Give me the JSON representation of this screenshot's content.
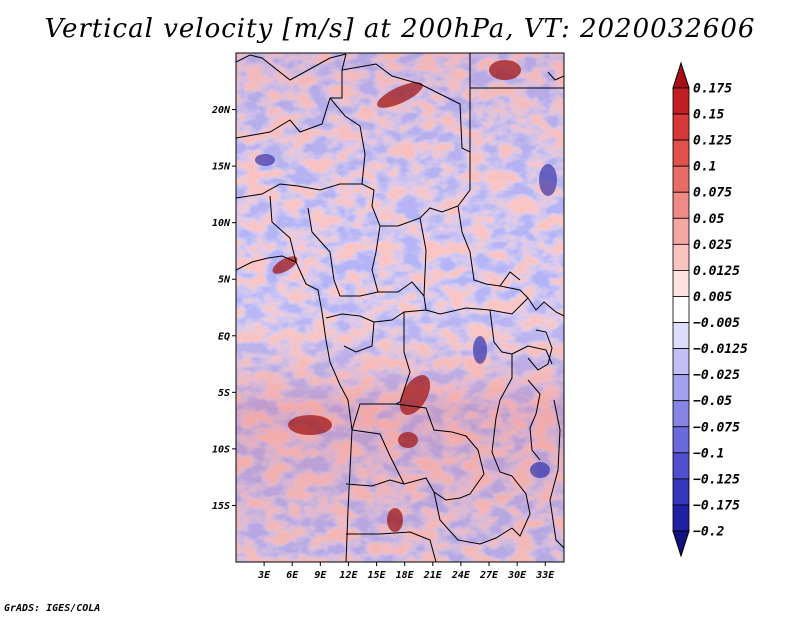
{
  "title": "Vertical velocity [m/s] at 200hPa, VT: 2020032606",
  "credit": "GrADS: IGES/COLA",
  "map": {
    "lon_range": [
      0,
      35
    ],
    "lat_range": [
      -20,
      25
    ],
    "xticks": [
      "3E",
      "6E",
      "9E",
      "12E",
      "15E",
      "18E",
      "21E",
      "24E",
      "27E",
      "30E",
      "33E"
    ],
    "xtick_values": [
      3,
      6,
      9,
      12,
      15,
      18,
      21,
      24,
      27,
      30,
      33
    ],
    "yticks": [
      "20N",
      "15N",
      "10N",
      "5N",
      "EQ",
      "5S",
      "10S",
      "15S"
    ],
    "ytick_values": [
      20,
      15,
      10,
      5,
      0,
      -5,
      -10,
      -15
    ]
  },
  "colorbar": {
    "labels": [
      "0.175",
      "0.15",
      "0.125",
      "0.1",
      "0.075",
      "0.05",
      "0.025",
      "0.0125",
      "0.005",
      "-0.005",
      "-0.0125",
      "-0.025",
      "-0.05",
      "-0.075",
      "-0.1",
      "-0.125",
      "-0.175",
      "-0.2"
    ],
    "colors": [
      "#a50f15",
      "#c21f25",
      "#d6383a",
      "#e0514e",
      "#e86d68",
      "#ef8a84",
      "#f4a6a0",
      "#f8c4c0",
      "#fde2df",
      "#ffffff",
      "#dcdcfb",
      "#c0c0f5",
      "#a2a2ee",
      "#8585e6",
      "#6a6adc",
      "#4f4fcf",
      "#3636bd",
      "#2020a4",
      "#12127f"
    ]
  },
  "chart_data": {
    "type": "heatmap",
    "title": "Vertical velocity [m/s] at 200hPa, VT: 2020032606",
    "variable": "Vertical velocity",
    "units": "m/s",
    "level": "200hPa",
    "valid_time": "2020032606",
    "x_ticks": [
      "3E",
      "6E",
      "9E",
      "12E",
      "15E",
      "18E",
      "21E",
      "24E",
      "27E",
      "30E",
      "33E"
    ],
    "y_ticks": [
      "20N",
      "15N",
      "10N",
      "5N",
      "EQ",
      "5S",
      "10S",
      "15S"
    ],
    "colorbar_levels": [
      0.175,
      0.15,
      0.125,
      0.1,
      0.075,
      0.05,
      0.025,
      0.0125,
      0.005,
      -0.005,
      -0.0125,
      -0.025,
      -0.05,
      -0.075,
      -0.1,
      -0.125,
      -0.175,
      -0.2
    ]
  }
}
